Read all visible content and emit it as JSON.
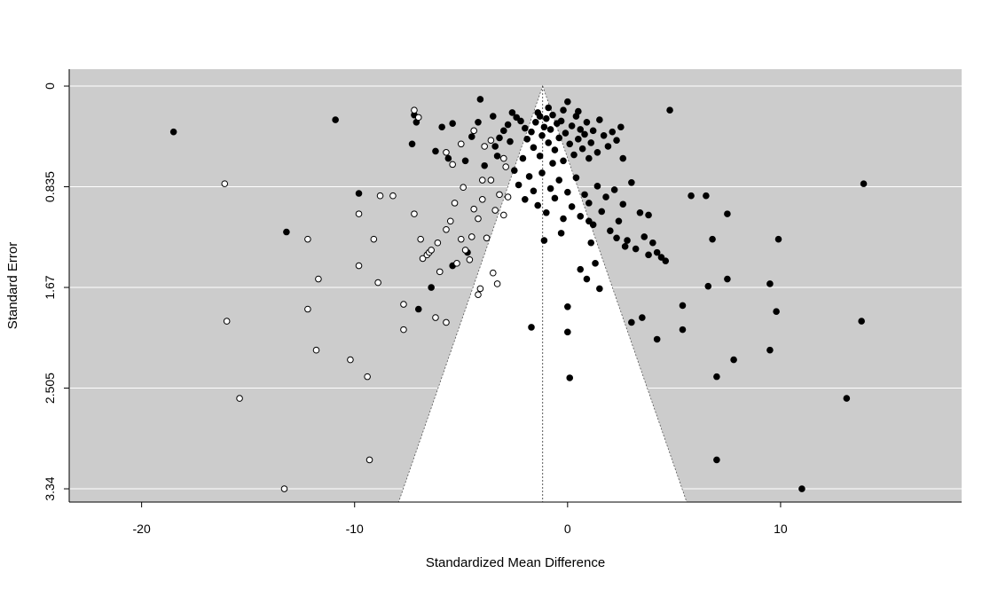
{
  "chart_data": {
    "type": "scatter",
    "title": "",
    "xlabel": "Standardized Mean Difference",
    "ylabel": "Standard Error",
    "xlim": [
      -23.4,
      18.5
    ],
    "ylim": [
      3.45,
      -0.14
    ],
    "y_reversed": true,
    "x_ticks": [
      -20,
      -10,
      0,
      10
    ],
    "x_tick_labels": [
      "-20",
      "-10",
      "0",
      "10"
    ],
    "y_ticks": [
      0,
      0.835,
      1.67,
      2.505,
      3.34
    ],
    "y_tick_labels": [
      "0",
      "0.835",
      "1.67",
      "2.505",
      "3.34"
    ],
    "grid": "horizontal",
    "center_line": -1.17,
    "funnel_z": 1.96,
    "colors": {
      "panel_background": "#cccccc",
      "funnel_region": "#ffffff",
      "gridline": "#ffffff",
      "observed_fill": "#000000",
      "imputed_fill": "#ffffff",
      "point_stroke": "#000000"
    },
    "series": [
      {
        "name": "",
        "marker": "filled",
        "points": [
          [
            -18.5,
            0.38
          ],
          [
            -10.9,
            0.28
          ],
          [
            -9.8,
            0.89
          ],
          [
            -13.2,
            1.21
          ],
          [
            4.8,
            0.2
          ],
          [
            13.9,
            0.81
          ],
          [
            -7.2,
            0.24
          ],
          [
            -7.1,
            0.3
          ],
          [
            -7.3,
            0.48
          ],
          [
            -6.2,
            0.54
          ],
          [
            -5.9,
            0.34
          ],
          [
            -5.6,
            0.6
          ],
          [
            -5.4,
            0.31
          ],
          [
            -4.8,
            0.62
          ],
          [
            -4.5,
            0.42
          ],
          [
            -4.2,
            0.3
          ],
          [
            -4.1,
            0.11
          ],
          [
            -3.9,
            0.66
          ],
          [
            -3.5,
            0.25
          ],
          [
            -3.4,
            0.5
          ],
          [
            -3.2,
            0.43
          ],
          [
            -3.0,
            0.37
          ],
          [
            -2.8,
            0.32
          ],
          [
            -2.6,
            0.22
          ],
          [
            -2.4,
            0.26
          ],
          [
            -2.2,
            0.29
          ],
          [
            -2.0,
            0.35
          ],
          [
            -1.9,
            0.44
          ],
          [
            -1.7,
            0.38
          ],
          [
            -1.6,
            0.51
          ],
          [
            -1.5,
            0.3
          ],
          [
            -1.4,
            0.22
          ],
          [
            -1.3,
            0.58
          ],
          [
            -1.2,
            0.41
          ],
          [
            -1.1,
            0.34
          ],
          [
            -1.0,
            0.27
          ],
          [
            -0.9,
            0.47
          ],
          [
            -0.8,
            0.36
          ],
          [
            -0.7,
            0.24
          ],
          [
            -0.6,
            0.53
          ],
          [
            -0.5,
            0.31
          ],
          [
            -0.4,
            0.43
          ],
          [
            -0.3,
            0.29
          ],
          [
            -0.2,
            0.62
          ],
          [
            -0.1,
            0.39
          ],
          [
            0.0,
            0.13
          ],
          [
            0.1,
            0.48
          ],
          [
            0.2,
            0.33
          ],
          [
            0.3,
            0.57
          ],
          [
            0.4,
            0.25
          ],
          [
            0.5,
            0.44
          ],
          [
            0.6,
            0.36
          ],
          [
            0.7,
            0.52
          ],
          [
            0.8,
            0.4
          ],
          [
            0.9,
            0.3
          ],
          [
            1.0,
            0.6
          ],
          [
            1.1,
            0.47
          ],
          [
            1.2,
            0.37
          ],
          [
            1.4,
            0.55
          ],
          [
            1.5,
            0.28
          ],
          [
            1.7,
            0.41
          ],
          [
            1.9,
            0.5
          ],
          [
            2.1,
            0.38
          ],
          [
            2.3,
            0.45
          ],
          [
            2.5,
            0.34
          ],
          [
            2.6,
            0.6
          ],
          [
            -2.5,
            0.7
          ],
          [
            -2.3,
            0.82
          ],
          [
            -2.0,
            0.94
          ],
          [
            -1.8,
            0.75
          ],
          [
            -1.6,
            0.87
          ],
          [
            -1.4,
            0.99
          ],
          [
            -1.2,
            0.72
          ],
          [
            -1.0,
            1.05
          ],
          [
            -0.8,
            0.85
          ],
          [
            -0.6,
            0.93
          ],
          [
            -0.4,
            0.78
          ],
          [
            -0.2,
            1.1
          ],
          [
            0.0,
            0.88
          ],
          [
            0.2,
            1.0
          ],
          [
            0.4,
            0.76
          ],
          [
            0.6,
            1.08
          ],
          [
            0.8,
            0.9
          ],
          [
            1.0,
            0.97
          ],
          [
            1.2,
            1.15
          ],
          [
            1.4,
            0.83
          ],
          [
            1.6,
            1.04
          ],
          [
            1.8,
            0.92
          ],
          [
            2.0,
            1.2
          ],
          [
            2.2,
            0.86
          ],
          [
            2.4,
            1.12
          ],
          [
            2.6,
            0.98
          ],
          [
            2.8,
            1.28
          ],
          [
            3.0,
            0.8
          ],
          [
            3.2,
            1.35
          ],
          [
            3.4,
            1.05
          ],
          [
            3.6,
            1.25
          ],
          [
            3.8,
            1.4
          ],
          [
            4.0,
            1.3
          ],
          [
            4.2,
            1.38
          ],
          [
            4.4,
            1.42
          ],
          [
            4.6,
            1.45
          ],
          [
            1.1,
            1.3
          ],
          [
            1.3,
            1.47
          ],
          [
            0.9,
            1.6
          ],
          [
            1.5,
            1.68
          ],
          [
            0.6,
            1.52
          ],
          [
            -1.1,
            1.28
          ],
          [
            0.0,
            2.04
          ],
          [
            -1.7,
            2.0
          ],
          [
            0.0,
            1.83
          ],
          [
            3.0,
            1.96
          ],
          [
            3.5,
            1.92
          ],
          [
            4.2,
            2.1
          ],
          [
            5.4,
            1.82
          ],
          [
            5.4,
            2.02
          ],
          [
            6.6,
            1.66
          ],
          [
            7.5,
            1.6
          ],
          [
            7.5,
            1.06
          ],
          [
            6.8,
            1.27
          ],
          [
            3.8,
            1.07
          ],
          [
            5.8,
            0.91
          ],
          [
            6.5,
            0.91
          ],
          [
            7.0,
            2.41
          ],
          [
            7.8,
            2.27
          ],
          [
            9.5,
            2.19
          ],
          [
            9.5,
            1.64
          ],
          [
            9.8,
            1.87
          ],
          [
            9.9,
            1.27
          ],
          [
            13.8,
            1.95
          ],
          [
            13.1,
            2.59
          ],
          [
            7.0,
            3.1
          ],
          [
            11.0,
            3.34
          ],
          [
            -4.7,
            1.38
          ],
          [
            -5.4,
            1.49
          ],
          [
            -6.4,
            1.67
          ],
          [
            -7.0,
            1.85
          ],
          [
            0.1,
            2.42
          ],
          [
            1.0,
            1.12
          ],
          [
            -0.3,
            1.22
          ],
          [
            2.3,
            1.26
          ],
          [
            2.7,
            1.33
          ],
          [
            -3.3,
            0.58
          ],
          [
            -2.7,
            0.46
          ],
          [
            -2.1,
            0.6
          ],
          [
            -0.2,
            0.2
          ],
          [
            0.5,
            0.21
          ],
          [
            -1.3,
            0.25
          ],
          [
            -0.9,
            0.18
          ],
          [
            -0.7,
            0.64
          ]
        ]
      },
      {
        "name": "",
        "marker": "open",
        "points": [
          [
            -16.1,
            0.81
          ],
          [
            -16.0,
            1.95
          ],
          [
            -15.4,
            2.59
          ],
          [
            -13.3,
            3.34
          ],
          [
            -12.2,
            1.27
          ],
          [
            -12.2,
            1.85
          ],
          [
            -11.7,
            1.6
          ],
          [
            -11.8,
            2.19
          ],
          [
            -10.2,
            2.27
          ],
          [
            -9.8,
            1.06
          ],
          [
            -9.8,
            1.49
          ],
          [
            -9.4,
            2.41
          ],
          [
            -9.3,
            3.1
          ],
          [
            -9.1,
            1.27
          ],
          [
            -8.9,
            1.63
          ],
          [
            -8.8,
            0.91
          ],
          [
            -8.2,
            0.91
          ],
          [
            -7.7,
            1.81
          ],
          [
            -7.7,
            2.02
          ],
          [
            -7.2,
            1.06
          ],
          [
            -6.9,
            1.27
          ],
          [
            -6.8,
            1.43
          ],
          [
            -6.6,
            1.4
          ],
          [
            -6.5,
            1.38
          ],
          [
            -6.4,
            1.36
          ],
          [
            -6.1,
            1.3
          ],
          [
            -6.0,
            1.54
          ],
          [
            -5.7,
            1.19
          ],
          [
            -5.5,
            1.12
          ],
          [
            -5.3,
            0.97
          ],
          [
            -5.2,
            1.47
          ],
          [
            -5.0,
            1.27
          ],
          [
            -4.8,
            1.36
          ],
          [
            -4.6,
            1.44
          ],
          [
            -4.4,
            1.02
          ],
          [
            -4.2,
            1.1
          ],
          [
            -4.0,
            0.94
          ],
          [
            -3.8,
            1.26
          ],
          [
            -3.6,
            0.78
          ],
          [
            -3.4,
            1.03
          ],
          [
            -3.2,
            0.9
          ],
          [
            -3.0,
            1.07
          ],
          [
            -2.8,
            0.92
          ],
          [
            -4.9,
            0.84
          ],
          [
            -5.4,
            0.65
          ],
          [
            -5.7,
            0.55
          ],
          [
            -5.0,
            0.48
          ],
          [
            -4.4,
            0.37
          ],
          [
            -3.9,
            0.5
          ],
          [
            -3.6,
            0.45
          ],
          [
            -3.0,
            0.6
          ],
          [
            -2.9,
            0.67
          ],
          [
            -4.1,
            1.68
          ],
          [
            -4.2,
            1.73
          ],
          [
            -3.5,
            1.55
          ],
          [
            -3.3,
            1.64
          ],
          [
            -6.2,
            1.92
          ],
          [
            -5.7,
            1.96
          ],
          [
            -7.2,
            0.2
          ],
          [
            -7.0,
            0.26
          ],
          [
            -4.0,
            0.78
          ],
          [
            -4.5,
            1.25
          ]
        ]
      }
    ]
  }
}
